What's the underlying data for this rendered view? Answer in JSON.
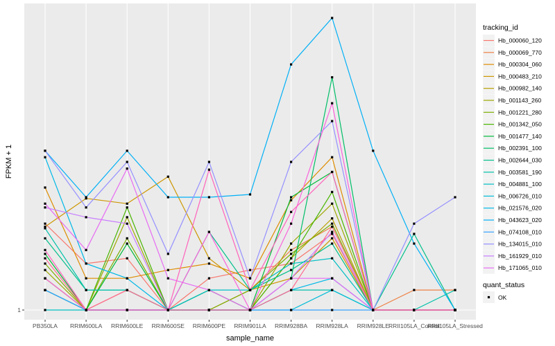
{
  "chart_data": {
    "type": "line",
    "xlabel": "sample_name",
    "ylabel": "FPKM + 1",
    "ylim": [
      0,
      340
    ],
    "y_scale": "log10(FPKM + 1)",
    "y_tick_labels": [
      "1"
    ],
    "x": [
      "PB350LA",
      "RRIM600LA",
      "RRIM600LE",
      "RRIM600SE",
      "RRIM600PE",
      "RRIM901LA",
      "RRIM928BA",
      "RRIM928LA",
      "RRIM928LE",
      "RRII105LA_Control",
      "RRII105LA_Stressed"
    ],
    "legend_title": "tracking_id",
    "legend_position": "right",
    "grid": true,
    "series": [
      {
        "name": "Hb_000060_120",
        "color": "#F8766D",
        "values": [
          20,
          5,
          6,
          1,
          3,
          4,
          5,
          14,
          1,
          1,
          1
        ]
      },
      {
        "name": "Hb_000069_770",
        "color": "#EE8043",
        "values": [
          3,
          1,
          2,
          1,
          1,
          2,
          8,
          18,
          1,
          2,
          2
        ]
      },
      {
        "name": "Hb_000304_060",
        "color": "#DE8C00",
        "values": [
          70,
          3,
          3,
          4,
          5,
          3,
          45,
          200,
          1,
          1,
          1
        ]
      },
      {
        "name": "Hb_000483_210",
        "color": "#CD9600",
        "values": [
          18,
          48,
          40,
          102,
          6,
          2,
          3,
          12,
          1,
          1,
          1
        ]
      },
      {
        "name": "Hb_000982_140",
        "color": "#B79F00",
        "values": [
          2,
          1,
          1,
          1,
          1,
          1,
          6,
          24,
          1,
          1,
          1
        ]
      },
      {
        "name": "Hb_001143_260",
        "color": "#9DA700",
        "values": [
          4,
          1,
          25,
          1,
          2,
          1,
          10,
          40,
          1,
          1,
          1
        ]
      },
      {
        "name": "Hb_001221_280",
        "color": "#7CAE00",
        "values": [
          5,
          1,
          12,
          1,
          1,
          2,
          7,
          20,
          1,
          1,
          1
        ]
      },
      {
        "name": "Hb_001342_050",
        "color": "#49B500",
        "values": [
          3,
          1,
          35,
          1,
          1,
          1,
          6,
          60,
          1,
          1,
          1
        ]
      },
      {
        "name": "Hb_001477_140",
        "color": "#00BA38",
        "values": [
          7,
          1,
          10,
          1,
          1,
          1,
          50,
          120,
          1,
          1,
          1
        ]
      },
      {
        "name": "Hb_002391_100",
        "color": "#00BE67",
        "values": [
          2,
          1,
          1,
          1,
          2,
          1,
          3,
          3200,
          1,
          1,
          1
        ]
      },
      {
        "name": "Hb_002644_030",
        "color": "#00C08B",
        "values": [
          12,
          2,
          2,
          1,
          15,
          2,
          4,
          10,
          1,
          14,
          1
        ]
      },
      {
        "name": "Hb_003581_190",
        "color": "#00C1A9",
        "values": [
          17,
          2,
          2,
          1,
          1,
          1,
          2,
          2,
          1,
          1,
          2
        ]
      },
      {
        "name": "Hb_004881_100",
        "color": "#00BFC4",
        "values": [
          1,
          1,
          1,
          1,
          2,
          2,
          5,
          6,
          1,
          1,
          1
        ]
      },
      {
        "name": "Hb_006726_010",
        "color": "#00BCD8",
        "values": [
          2,
          1,
          1,
          1,
          1,
          1,
          1,
          2,
          1,
          1,
          1
        ]
      },
      {
        "name": "Hb_021576_020",
        "color": "#00B8E7",
        "values": [
          200,
          5,
          3,
          1,
          1,
          1,
          2,
          3,
          1,
          1,
          1
        ]
      },
      {
        "name": "Hb_043623_020",
        "color": "#00B0F6",
        "values": [
          250,
          50,
          250,
          50,
          50,
          55,
          5000,
          25000,
          250,
          10,
          1
        ]
      },
      {
        "name": "Hb_074108_010",
        "color": "#35A2FF",
        "values": [
          2,
          1,
          1,
          1,
          1,
          1,
          1,
          1,
          1,
          1,
          1
        ]
      },
      {
        "name": "Hb_134015_010",
        "color": "#9590FF",
        "values": [
          250,
          35,
          170,
          7,
          170,
          3,
          170,
          700,
          1,
          20,
          50
        ]
      },
      {
        "name": "Hb_161929_010",
        "color": "#C77CFF",
        "values": [
          35,
          25,
          20,
          1,
          1,
          1,
          3,
          15,
          1,
          1,
          1
        ]
      },
      {
        "name": "Hb_171065_010",
        "color": "#E76BF3",
        "values": [
          40,
          8,
          135,
          3,
          2,
          1,
          3,
          3,
          1,
          1,
          1
        ]
      },
      {
        "name": "",
        "color": "#FA62DB",
        "values": [
          3,
          1,
          1,
          1,
          15,
          1,
          20,
          1300,
          1,
          1,
          1
        ]
      },
      {
        "name": "",
        "color": "#FF62BC",
        "values": [
          8,
          1,
          1,
          1,
          130,
          2,
          30,
          120,
          1,
          1,
          1
        ]
      },
      {
        "name": "",
        "color": "#FF6C91",
        "values": [
          6,
          1,
          2,
          1,
          1,
          1,
          2,
          18,
          1,
          1,
          1
        ]
      }
    ],
    "point_legend_title": "quant_status",
    "point_legend_label": "OK"
  }
}
